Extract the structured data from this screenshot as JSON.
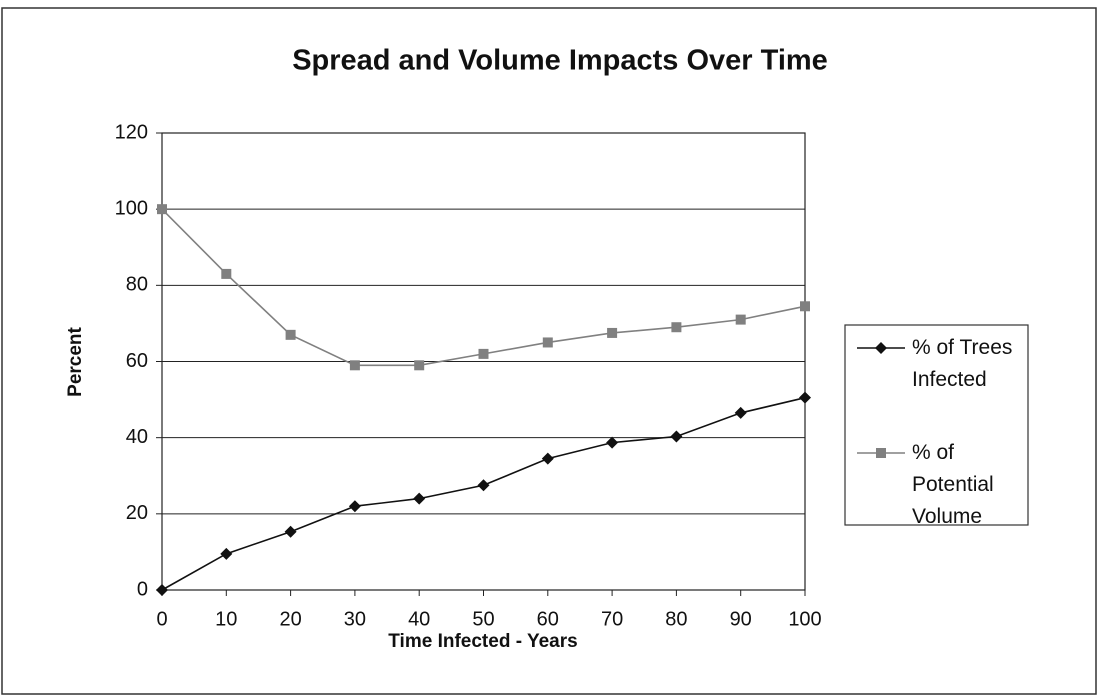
{
  "chart_data": {
    "type": "line",
    "title": "Spread and Volume Impacts Over Time",
    "x_label": "Time Infected - Years",
    "y_label": "Percent",
    "x": [
      0,
      10,
      20,
      30,
      40,
      50,
      60,
      70,
      80,
      90,
      100
    ],
    "series": [
      {
        "name": "% of Trees Infected",
        "color": "#111111",
        "marker": "diamond",
        "values": [
          0,
          9.5,
          15.3,
          22,
          24,
          27.5,
          34.5,
          38.7,
          40.3,
          46.5,
          50.5
        ]
      },
      {
        "name": "% of Potential Volume",
        "color": "#808080",
        "marker": "square",
        "values": [
          100,
          83,
          67,
          59,
          59,
          62,
          65,
          67.5,
          69,
          71,
          74.5
        ]
      }
    ],
    "xlim": [
      0,
      100
    ],
    "xticks": [
      0,
      10,
      20,
      30,
      40,
      50,
      60,
      70,
      80,
      90,
      100
    ],
    "ylim": [
      0,
      120
    ],
    "yticks": [
      0,
      20,
      40,
      60,
      80,
      100,
      120
    ],
    "grid": true,
    "legend": "right"
  }
}
